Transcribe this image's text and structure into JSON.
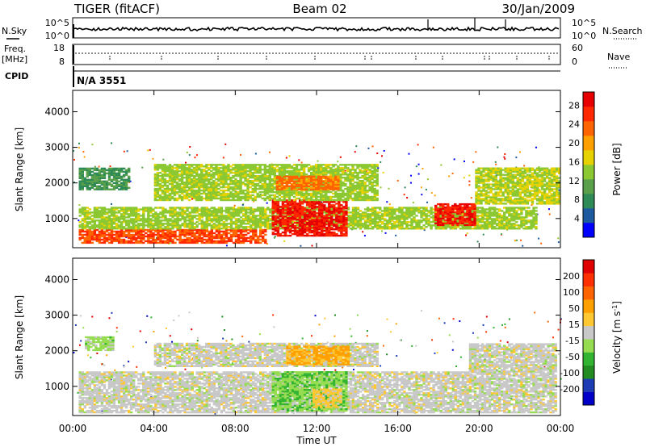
{
  "header": {
    "title": "TIGER (fitACF)",
    "beam": "Beam 02",
    "date": "30/Jan/2009"
  },
  "top_panels": {
    "nsky_label": "N.Sky",
    "nsearch_label": "N.Search",
    "noise_ticks": [
      "10^5",
      "10^0"
    ],
    "freq_label": "Freq.",
    "freq_unit": "[MHz]",
    "freq_ticks": [
      "18",
      "8"
    ],
    "nave_label": "Nave",
    "nave_ticks": [
      "60",
      "0"
    ],
    "cpid_label": "CPID",
    "cpid_value": "N/A 3551"
  },
  "chart_data": [
    {
      "type": "heatmap",
      "name": "power-panel",
      "ylabel": "Slant Range [km]",
      "xlabel": "",
      "xlim": [
        0,
        24
      ],
      "ylim": [
        180,
        4600
      ],
      "y_ticks": [
        1000,
        2000,
        3000,
        4000
      ],
      "x_ticks": [
        0,
        4,
        8,
        12,
        16,
        20,
        24
      ],
      "colorbar": {
        "label": "Power [dB]",
        "ticks": [
          "4",
          "8",
          "12",
          "16",
          "20",
          "24",
          "28"
        ],
        "colors": [
          "#0000ff",
          "#1e5aa0",
          "#2e8b57",
          "#5aa04a",
          "#8cc832",
          "#e6d200",
          "#ffa000",
          "#ff6400",
          "#ff2800",
          "#e60000"
        ],
        "range": [
          0,
          30
        ]
      },
      "regions": [
        {
          "t0": 0.3,
          "t1": 9.5,
          "r0": 300,
          "r1": 700,
          "value": 24
        },
        {
          "t0": 0.3,
          "t1": 22.8,
          "r0": 700,
          "r1": 1300,
          "value": 14
        },
        {
          "t0": 9.8,
          "t1": 13.5,
          "r0": 500,
          "r1": 1500,
          "value": 27
        },
        {
          "t0": 17.8,
          "t1": 19.8,
          "r0": 800,
          "r1": 1400,
          "value": 27
        },
        {
          "t0": 0.3,
          "t1": 2.8,
          "r0": 1800,
          "r1": 2400,
          "value": 9
        },
        {
          "t0": 4.0,
          "t1": 15.0,
          "r0": 1500,
          "r1": 2500,
          "value": 14
        },
        {
          "t0": 10.0,
          "t1": 13.0,
          "r0": 1800,
          "r1": 2200,
          "value": 22
        },
        {
          "t0": 19.8,
          "t1": 24.0,
          "r0": 1400,
          "r1": 2400,
          "value": 15
        }
      ]
    },
    {
      "type": "heatmap",
      "name": "velocity-panel",
      "ylabel": "Slant Range [km]",
      "xlabel": "Time UT",
      "xlim": [
        0,
        24
      ],
      "ylim": [
        180,
        4600
      ],
      "y_ticks": [
        1000,
        2000,
        3000,
        4000
      ],
      "x_ticks": [
        0,
        4,
        8,
        12,
        16,
        20,
        24
      ],
      "x_tick_labels": [
        "00:00",
        "04:00",
        "08:00",
        "12:00",
        "16:00",
        "20:00",
        "00:00"
      ],
      "colorbar": {
        "label": "Velocity [m s^-1]",
        "ticks": [
          "200",
          "100",
          "50",
          "15",
          "-15",
          "-50",
          "-100",
          "-200"
        ],
        "colors": [
          "#0000c8",
          "#1e3cb4",
          "#228b22",
          "#32b432",
          "#96dc50",
          "#c8c8c8",
          "#ffc832",
          "#ffa000",
          "#ff6400",
          "#ff3000",
          "#e00000"
        ],
        "range": [
          -250,
          250
        ]
      },
      "regions": [
        {
          "t0": 0.3,
          "t1": 23.8,
          "r0": 250,
          "r1": 1400,
          "value": 0
        },
        {
          "t0": 9.8,
          "t1": 13.5,
          "r0": 300,
          "r1": 1400,
          "value": -60
        },
        {
          "t0": 11.8,
          "t1": 13.2,
          "r0": 400,
          "r1": 900,
          "value": 40
        },
        {
          "t0": 0.6,
          "t1": 2.0,
          "r0": 2000,
          "r1": 2400,
          "value": -40
        },
        {
          "t0": 4.0,
          "t1": 15.0,
          "r0": 1550,
          "r1": 2200,
          "value": 0
        },
        {
          "t0": 10.5,
          "t1": 13.5,
          "r0": 1600,
          "r1": 2100,
          "value": 80
        },
        {
          "t0": 19.5,
          "t1": 23.8,
          "r0": 1400,
          "r1": 2200,
          "value": 0
        }
      ]
    }
  ]
}
